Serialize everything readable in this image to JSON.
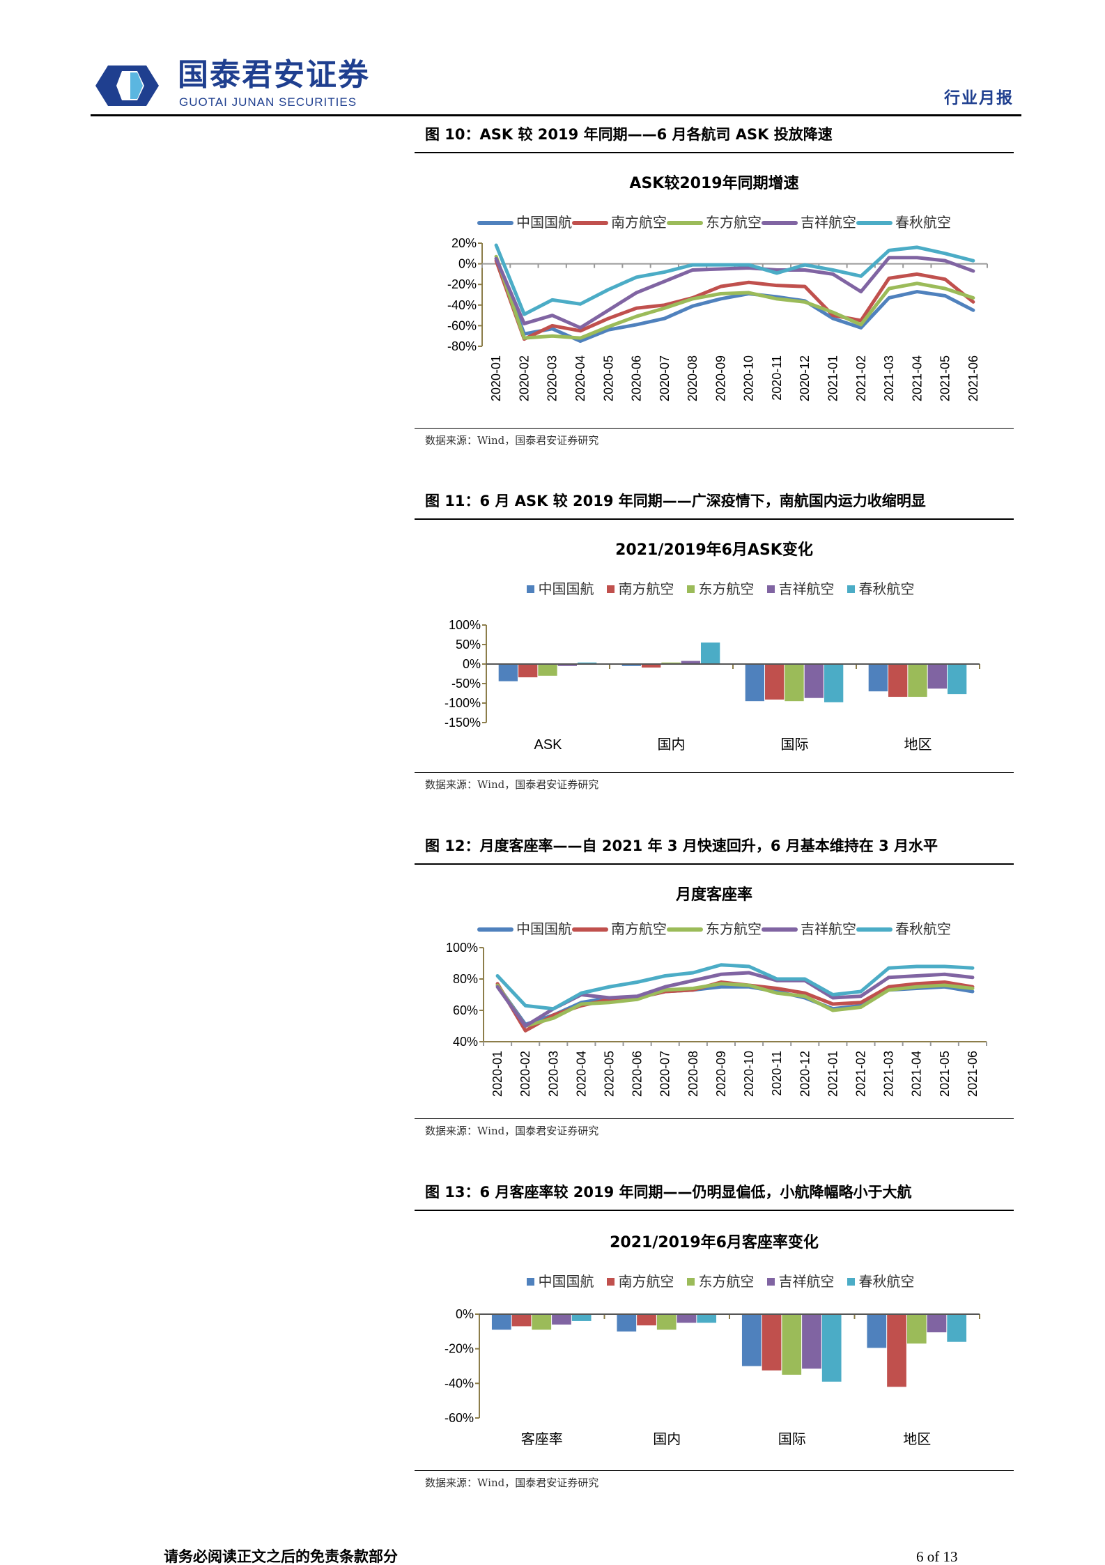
{
  "header": {
    "logo_cn": "国泰君安证券",
    "logo_en": "GUOTAI JUNAN SECURITIES",
    "report_type": "行业月报"
  },
  "colors": {
    "中国国航": "#4F81BD",
    "南方航空": "#C0504D",
    "东方航空": "#9BBB59",
    "吉祥航空": "#8064A2",
    "春秋航空": "#4BACC6",
    "brand": "#1f3f8f"
  },
  "figures": [
    {
      "label": "图 10：ASK 较 2019 年同期——6 月各航司 ASK 投放降速",
      "source": "数据来源：Wind，国泰君安证券研究"
    },
    {
      "label": "图 11：6 月 ASK 较 2019 年同期——广深疫情下，南航国内运力收缩明显",
      "source": "数据来源：Wind，国泰君安证券研究"
    },
    {
      "label": "图 12：月度客座率——自 2021 年 3 月快速回升，6 月基本维持在 3 月水平",
      "source": "数据来源：Wind，国泰君安证券研究"
    },
    {
      "label": "图 13：6 月客座率较 2019 年同期——仍明显偏低，小航降幅略小于大航",
      "source": "数据来源：Wind，国泰君安证券研究"
    }
  ],
  "chart_data": [
    {
      "type": "line",
      "title": "ASK较2019年同期增速",
      "legend": "top",
      "x": [
        "2020-01",
        "2020-02",
        "2020-03",
        "2020-04",
        "2020-05",
        "2020-06",
        "2020-07",
        "2020-08",
        "2020-09",
        "2020-10",
        "2020-11",
        "2020-12",
        "2021-01",
        "2021-02",
        "2021-03",
        "2021-04",
        "2021-05",
        "2021-06"
      ],
      "yticks": [
        "20%",
        "0%",
        "-20%",
        "-40%",
        "-60%",
        "-80%"
      ],
      "ylim": [
        -80,
        20
      ],
      "unit": "%",
      "series": [
        {
          "name": "中国国航",
          "values": [
            5,
            -68,
            -63,
            -75,
            -64,
            -59,
            -53,
            -41,
            -34,
            -29,
            -32,
            -36,
            -53,
            -62,
            -33,
            -27,
            -31,
            -45
          ]
        },
        {
          "name": "南方航空",
          "values": [
            3,
            -73,
            -60,
            -65,
            -53,
            -43,
            -40,
            -33,
            -22,
            -18,
            -21,
            -22,
            -50,
            -55,
            -14,
            -10,
            -15,
            -37
          ]
        },
        {
          "name": "东方航空",
          "values": [
            7,
            -72,
            -70,
            -72,
            -61,
            -51,
            -43,
            -34,
            -29,
            -28,
            -34,
            -37,
            -47,
            -59,
            -24,
            -19,
            -24,
            -33
          ]
        },
        {
          "name": "吉祥航空",
          "values": [
            5,
            -58,
            -50,
            -62,
            -45,
            -28,
            -17,
            -6,
            -5,
            -4,
            -6,
            -6,
            -10,
            -27,
            6,
            6,
            3,
            -7
          ]
        },
        {
          "name": "春秋航空",
          "values": [
            18,
            -49,
            -35,
            -39,
            -25,
            -13,
            -8,
            -1,
            -1,
            -1,
            -9,
            -1,
            -6,
            -12,
            13,
            16,
            10,
            3
          ]
        }
      ]
    },
    {
      "type": "bar",
      "title": "2021/2019年6月ASK变化",
      "legend": "top",
      "categories": [
        "ASK",
        "国内",
        "国际",
        "地区"
      ],
      "yticks": [
        "100%",
        "50%",
        "0%",
        "-50%",
        "-100%",
        "-150%"
      ],
      "ylim": [
        -150,
        100
      ],
      "unit": "%",
      "series": [
        {
          "name": "中国国航",
          "values": [
            -44,
            -5,
            -95,
            -70
          ]
        },
        {
          "name": "南方航空",
          "values": [
            -34,
            -9,
            -91,
            -84
          ]
        },
        {
          "name": "东方航空",
          "values": [
            -30,
            4,
            -95,
            -84
          ]
        },
        {
          "name": "吉祥航空",
          "values": [
            -5,
            8,
            -87,
            -63
          ]
        },
        {
          "name": "春秋航空",
          "values": [
            4,
            55,
            -98,
            -77
          ]
        }
      ]
    },
    {
      "type": "line",
      "title": "月度客座率",
      "legend": "top",
      "x": [
        "2020-01",
        "2020-02",
        "2020-03",
        "2020-04",
        "2020-05",
        "2020-06",
        "2020-07",
        "2020-08",
        "2020-09",
        "2020-10",
        "2020-11",
        "2020-12",
        "2021-01",
        "2021-02",
        "2021-03",
        "2021-04",
        "2021-05",
        "2021-06"
      ],
      "yticks": [
        "100%",
        "80%",
        "60%",
        "40%"
      ],
      "ylim": [
        40,
        100
      ],
      "unit": "%",
      "series": [
        {
          "name": "中国国航",
          "values": [
            76,
            51,
            57,
            65,
            68,
            68,
            72,
            73,
            75,
            75,
            72,
            68,
            61,
            63,
            73,
            74,
            75,
            72
          ]
        },
        {
          "name": "南方航空",
          "values": [
            77,
            47,
            57,
            63,
            67,
            68,
            72,
            73,
            78,
            76,
            74,
            71,
            64,
            65,
            75,
            77,
            78,
            75
          ]
        },
        {
          "name": "东方航空",
          "values": [
            76,
            50,
            55,
            64,
            65,
            67,
            73,
            74,
            77,
            76,
            71,
            69,
            60,
            62,
            73,
            75,
            76,
            74
          ]
        },
        {
          "name": "吉祥航空",
          "values": [
            75,
            50,
            61,
            70,
            68,
            69,
            75,
            79,
            83,
            84,
            79,
            79,
            68,
            69,
            81,
            82,
            83,
            81
          ]
        },
        {
          "name": "春秋航空",
          "values": [
            82,
            63,
            61,
            71,
            75,
            78,
            82,
            84,
            89,
            88,
            80,
            80,
            70,
            72,
            87,
            88,
            88,
            87
          ]
        }
      ]
    },
    {
      "type": "bar",
      "title": "2021/2019年6月客座率变化",
      "legend": "top",
      "categories": [
        "客座率",
        "国内",
        "国际",
        "地区"
      ],
      "yticks": [
        "0%",
        "-20%",
        "-40%",
        "-60%"
      ],
      "ylim": [
        -60,
        0
      ],
      "unit": "%",
      "series": [
        {
          "name": "中国国航",
          "values": [
            -9,
            -10,
            -30,
            -19.5
          ]
        },
        {
          "name": "南方航空",
          "values": [
            -7,
            -6.5,
            -32.5,
            -42
          ]
        },
        {
          "name": "东方航空",
          "values": [
            -9,
            -9,
            -35,
            -17
          ]
        },
        {
          "name": "吉祥航空",
          "values": [
            -6,
            -5,
            -31.5,
            -10.5
          ]
        },
        {
          "name": "春秋航空",
          "values": [
            -4,
            -5,
            -39,
            -16
          ]
        }
      ]
    }
  ],
  "footer": {
    "disclaimer": "请务必阅读正文之后的免责条款部分",
    "page": "6 of 13"
  }
}
